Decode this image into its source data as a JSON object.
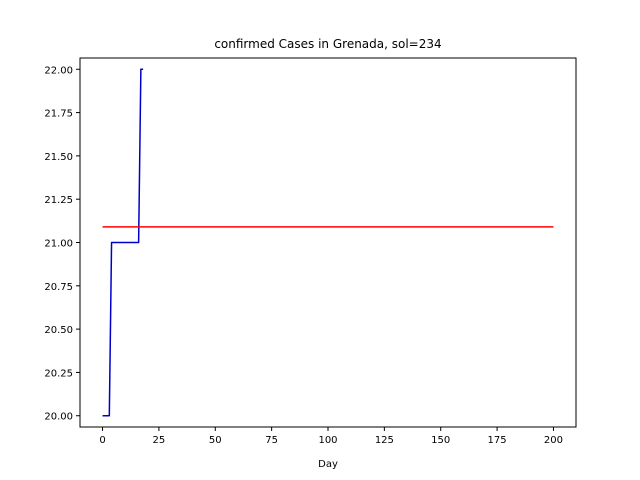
{
  "chart_data": {
    "type": "line",
    "title": "confirmed Cases in Grenada, sol=234",
    "xlabel": "Day",
    "ylabel": "",
    "xlim": [
      -10,
      210
    ],
    "ylim": [
      19.935,
      22.065
    ],
    "xticks": [
      0,
      25,
      50,
      75,
      100,
      125,
      150,
      175,
      200
    ],
    "yticks": [
      20.0,
      20.25,
      20.5,
      20.75,
      21.0,
      21.25,
      21.5,
      21.75,
      22.0
    ],
    "xtick_labels": [
      "0",
      "25",
      "50",
      "75",
      "100",
      "125",
      "150",
      "175",
      "200"
    ],
    "ytick_labels": [
      "20.00",
      "20.25",
      "20.50",
      "20.75",
      "21.00",
      "21.25",
      "21.50",
      "21.75",
      "22.00"
    ],
    "grid": false,
    "series": [
      {
        "color": "#0000cc",
        "x": [
          0,
          1,
          2,
          3,
          4,
          5,
          6,
          7,
          8,
          9,
          10,
          11,
          12,
          13,
          14,
          15,
          16,
          17,
          18
        ],
        "y": [
          20,
          20,
          20,
          20,
          21,
          21,
          21,
          21,
          21,
          21,
          21,
          21,
          21,
          21,
          21,
          21,
          21,
          22,
          22
        ]
      },
      {
        "color": "#ff0000",
        "x": [
          0,
          200
        ],
        "y": [
          21.09,
          21.09
        ]
      }
    ]
  }
}
